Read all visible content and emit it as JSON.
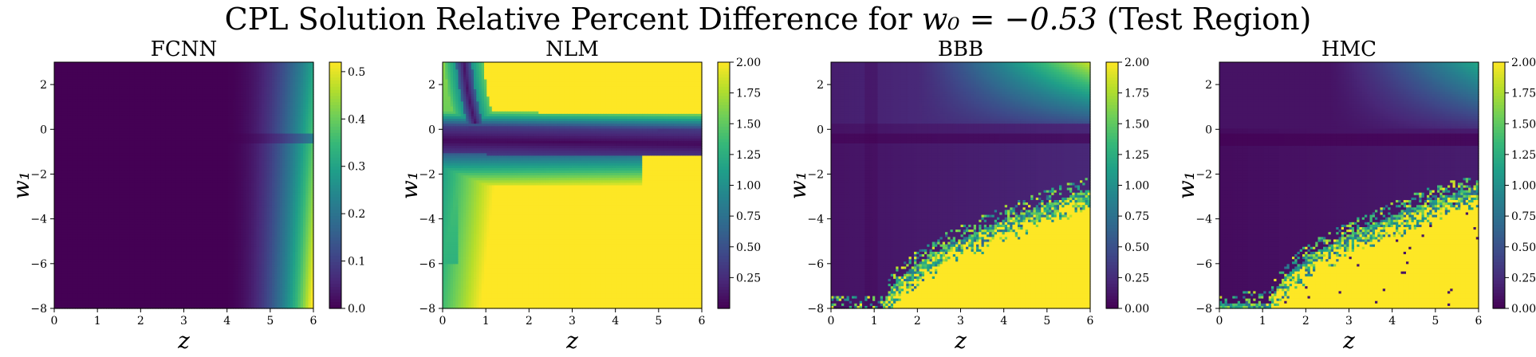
{
  "figure": {
    "title_prefix": "CPL Solution Relative Percent Difference for",
    "title_math": "w₀ = −0.53",
    "title_suffix": "(Test Region)",
    "colormap": "viridis",
    "colormap_stops": [
      "#440154",
      "#482878",
      "#3e4989",
      "#31688e",
      "#26828e",
      "#1f9e89",
      "#35b779",
      "#6ece58",
      "#b5de2b",
      "#fde725"
    ]
  },
  "chart_data": [
    {
      "type": "heatmap",
      "title": "FCNN",
      "xlabel": "z",
      "ylabel": "w₁",
      "xlim": [
        0,
        6
      ],
      "ylim": [
        -8,
        3
      ],
      "xticks": [
        "0",
        "1",
        "2",
        "3",
        "4",
        "5",
        "6"
      ],
      "yticks": [
        "2",
        "0",
        "−2",
        "−4",
        "−6",
        "−8"
      ],
      "colorbar_range": [
        0,
        0.52
      ],
      "colorbar_ticks": [
        "0.5",
        "0.4",
        "0.3",
        "0.2",
        "0.1",
        "0.0"
      ],
      "pattern": "Near zero across most of the region; grows with z beyond about 4.5, reaching ~0.5 at z=6, w₁=-8; dark horizontal band near w₁≈-0.4."
    },
    {
      "type": "heatmap",
      "title": "NLM",
      "xlabel": "z",
      "ylabel": "w₁",
      "xlim": [
        0,
        6
      ],
      "ylim": [
        -8,
        3
      ],
      "xticks": [
        "0",
        "1",
        "2",
        "3",
        "4",
        "5",
        "6"
      ],
      "yticks": [
        "2",
        "0",
        "−2",
        "−4",
        "−6",
        "−8"
      ],
      "colorbar_range": [
        0,
        2.0
      ],
      "colorbar_ticks": [
        "2.00",
        "1.75",
        "1.50",
        "1.25",
        "1.00",
        "0.75",
        "0.50",
        "0.25"
      ],
      "pattern": "Saturated (≥2) over most of the region; low-value band around w₁≈-0.5 and a dark curved band near z≈0.7 at top; triangular saturated wedge near z>5, w₁≈-2."
    },
    {
      "type": "heatmap",
      "title": "BBB",
      "xlabel": "z",
      "ylabel": "w₁",
      "xlim": [
        0,
        6
      ],
      "ylim": [
        -8,
        3
      ],
      "xticks": [
        "0",
        "1",
        "2",
        "3",
        "4",
        "5",
        "6"
      ],
      "yticks": [
        "2",
        "0",
        "−2",
        "−4",
        "−6",
        "−8"
      ],
      "colorbar_range": [
        0,
        2.0
      ],
      "colorbar_ticks": [
        "2.00",
        "1.75",
        "1.50",
        "1.25",
        "1.00",
        "0.75",
        "0.50",
        "0.25",
        "0.00"
      ],
      "pattern": "Low values at small z; noisy saturated region in lower right (large z, negative w₁); moderate values in upper right."
    },
    {
      "type": "heatmap",
      "title": "HMC",
      "xlabel": "z",
      "ylabel": "w₁",
      "xlim": [
        0,
        6
      ],
      "ylim": [
        -8,
        3
      ],
      "xticks": [
        "0",
        "1",
        "2",
        "3",
        "4",
        "5",
        "6"
      ],
      "yticks": [
        "2",
        "0",
        "−2",
        "−4",
        "−6",
        "−8"
      ],
      "colorbar_range": [
        0,
        2.0
      ],
      "colorbar_ticks": [
        "2.00",
        "1.75",
        "1.50",
        "1.25",
        "1.00",
        "0.75",
        "0.50",
        "0.25",
        "0.00"
      ],
      "pattern": "Low values at small z; noisy saturated region in lower right with boundary curving from z≈1.5 at w₁=-8 to z≈6 at w₁≈-2.5; moderate values top right."
    }
  ]
}
